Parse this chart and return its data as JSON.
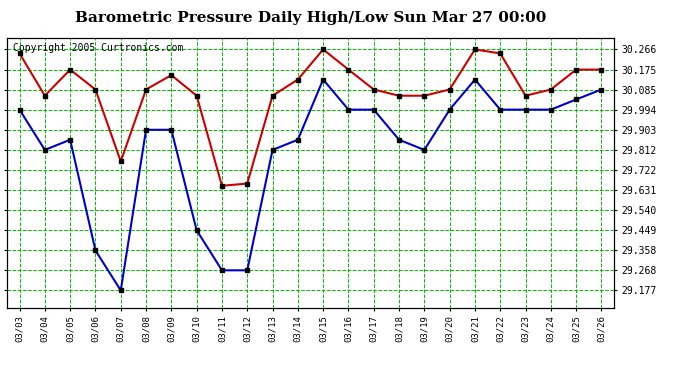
{
  "title": "Barometric Pressure Daily High/Low Sun Mar 27 00:00",
  "copyright": "Copyright 2005 Curtronics.com",
  "dates": [
    "03/03",
    "03/04",
    "03/05",
    "03/06",
    "03/07",
    "03/08",
    "03/09",
    "03/10",
    "03/11",
    "03/12",
    "03/13",
    "03/14",
    "03/15",
    "03/16",
    "03/17",
    "03/18",
    "03/19",
    "03/20",
    "03/21",
    "03/22",
    "03/23",
    "03/24",
    "03/25",
    "03/26"
  ],
  "high_values": [
    30.248,
    30.057,
    30.175,
    30.085,
    29.76,
    30.085,
    30.15,
    30.057,
    29.65,
    29.66,
    30.057,
    30.13,
    30.266,
    30.175,
    30.085,
    30.057,
    30.057,
    30.085,
    30.266,
    30.248,
    30.057,
    30.085,
    30.175,
    30.175
  ],
  "low_values": [
    29.994,
    29.812,
    29.858,
    29.358,
    29.177,
    29.903,
    29.903,
    29.449,
    29.268,
    29.268,
    29.812,
    29.858,
    30.13,
    29.994,
    29.994,
    29.858,
    29.812,
    29.994,
    30.13,
    29.994,
    29.994,
    29.994,
    30.04,
    30.085
  ],
  "high_color": "#cc0000",
  "low_color": "#0000cc",
  "marker_color": "#000000",
  "marker_size": 3,
  "grid_color": "#00bb00",
  "grid_style": "--",
  "background_color": "#ffffff",
  "title_fontsize": 11,
  "copyright_fontsize": 7,
  "yticks": [
    29.177,
    29.268,
    29.358,
    29.449,
    29.54,
    29.631,
    29.722,
    29.812,
    29.903,
    29.994,
    30.085,
    30.175,
    30.266
  ],
  "ylim": [
    29.1,
    30.32
  ],
  "xlim": [
    -0.5,
    23.5
  ],
  "line_width": 1.5
}
